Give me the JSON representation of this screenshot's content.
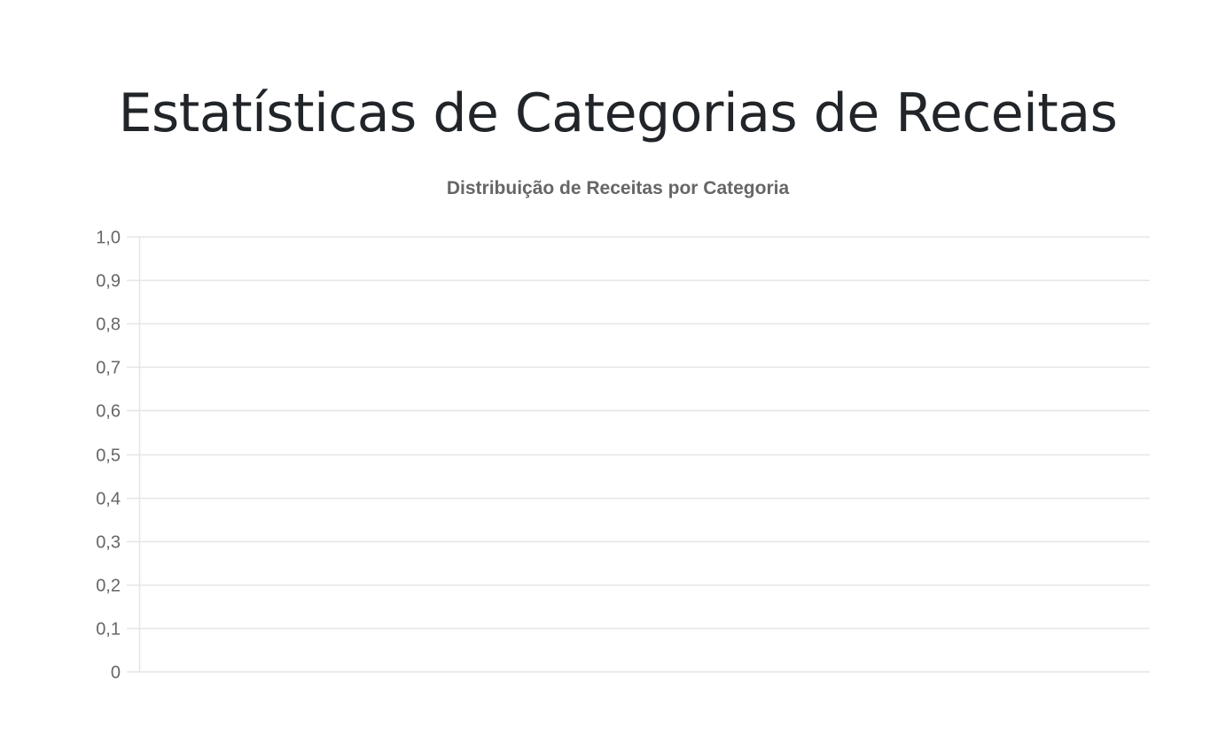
{
  "page": {
    "title": "Estatísticas de Categorias de Receitas"
  },
  "chart_data": {
    "type": "bar",
    "title": "Distribuição de Receitas por Categoria",
    "xlabel": "",
    "ylabel": "",
    "categories": [],
    "series": [],
    "ylim": [
      0,
      1
    ],
    "yticks": [
      "0",
      "0,1",
      "0,2",
      "0,3",
      "0,4",
      "0,5",
      "0,6",
      "0,7",
      "0,8",
      "0,9",
      "1,0"
    ],
    "grid": true,
    "legend": "none",
    "colors": {
      "grid": "#e5e5e5",
      "tick_text": "#666666",
      "title_text": "#666666"
    }
  }
}
